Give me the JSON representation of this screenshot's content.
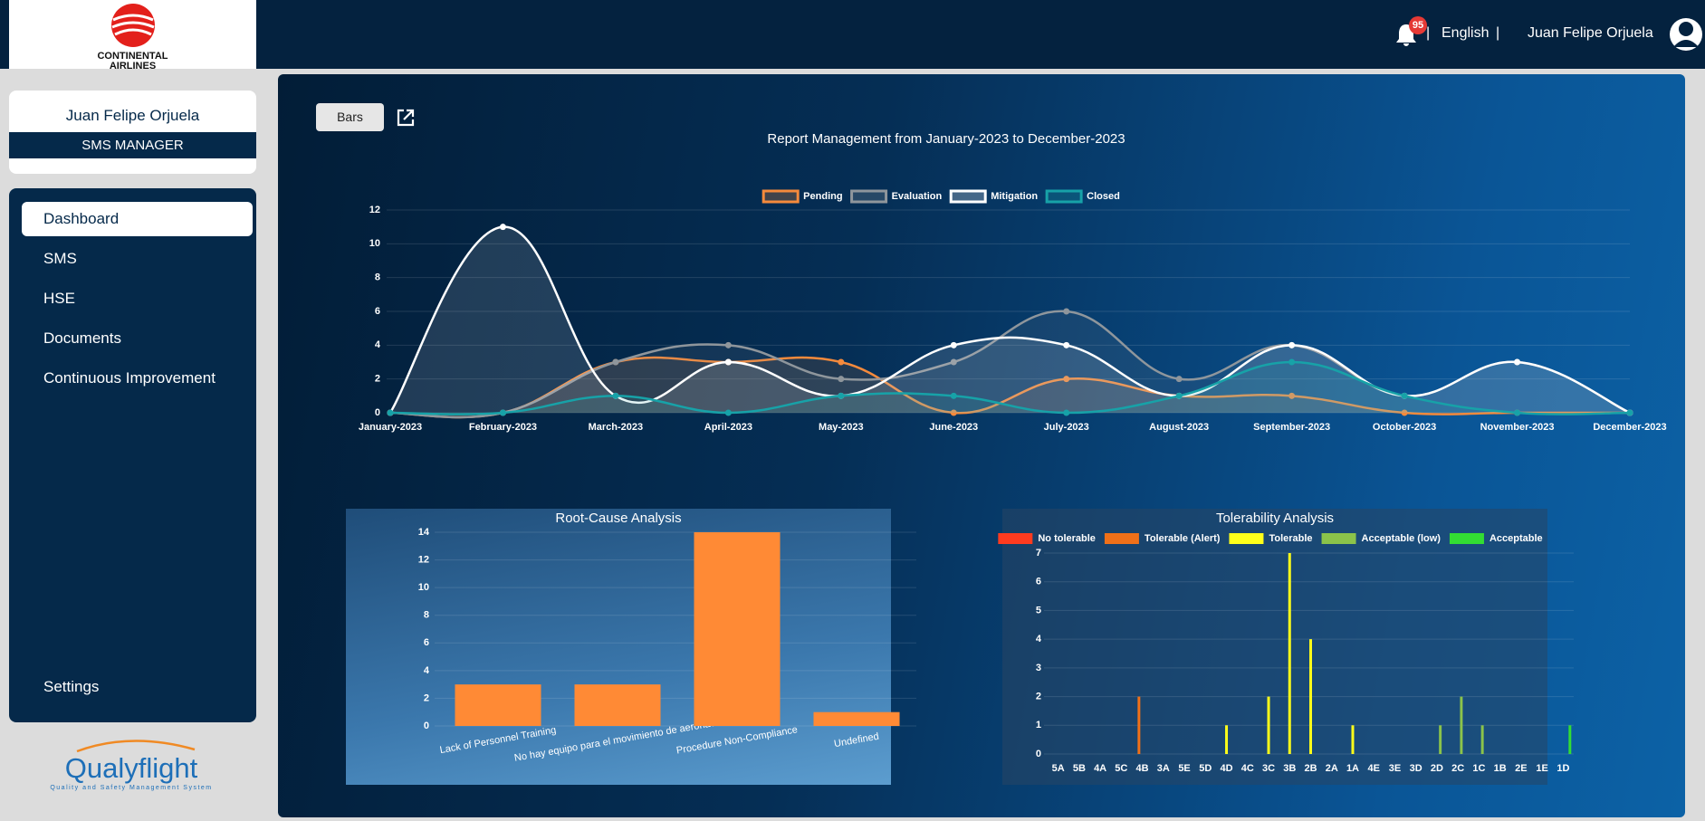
{
  "header": {
    "logo_lines": [
      "CONTINENTAL",
      "AIRLINES"
    ],
    "notifications": "95",
    "language": "English",
    "separator": "|",
    "user": "Juan Felipe Orjuela"
  },
  "sidebar": {
    "user_name": "Juan Felipe Orjuela",
    "role": "SMS MANAGER",
    "nav": [
      "Dashboard",
      "SMS",
      "HSE",
      "Documents",
      "Continuous Improvement"
    ],
    "settings": "Settings",
    "brand": "Qualyflight",
    "brand_tagline": "Quality and Safety Management System"
  },
  "toolbar": {
    "view_button": "Bars"
  },
  "chart_data": [
    {
      "type": "line",
      "title": "Report Management from January-2023 to December-2023",
      "categories": [
        "January-2023",
        "February-2023",
        "March-2023",
        "April-2023",
        "May-2023",
        "June-2023",
        "July-2023",
        "August-2023",
        "September-2023",
        "October-2023",
        "November-2023",
        "December-2023"
      ],
      "series": [
        {
          "name": "Pending",
          "color": "#f58a3c",
          "values": [
            0,
            0,
            3,
            3,
            3,
            0,
            2,
            1,
            1,
            0,
            0,
            0
          ]
        },
        {
          "name": "Evaluation",
          "color": "#8f969c",
          "values": [
            0,
            0,
            3,
            4,
            2,
            3,
            6,
            2,
            4,
            1,
            3,
            0
          ]
        },
        {
          "name": "Mitigation",
          "color": "#ffffff",
          "values": [
            0,
            11,
            1,
            3,
            1,
            4,
            4,
            1,
            4,
            1,
            3,
            0
          ]
        },
        {
          "name": "Closed",
          "color": "#17a2a8",
          "values": [
            0,
            0,
            1,
            0,
            1,
            1,
            0,
            1,
            3,
            1,
            0,
            0
          ]
        }
      ],
      "ylim": [
        0,
        12
      ],
      "yticks": [
        0,
        2,
        4,
        6,
        8,
        10,
        12
      ],
      "grid": true,
      "legend": "top"
    },
    {
      "type": "bar",
      "title": "Root-Cause Analysis",
      "categories": [
        "Lack of Personnel Training",
        "No hay equipo para el movimiento de aeronave",
        "Procedure Non-Compliance",
        "Undefined"
      ],
      "values": [
        3,
        3,
        14,
        1
      ],
      "color": "#ff8a35",
      "ylim": [
        0,
        14
      ],
      "yticks": [
        0,
        2,
        4,
        6,
        8,
        10,
        12,
        14
      ],
      "grid": true
    },
    {
      "type": "bar",
      "title": "Tolerability Analysis",
      "categories": [
        "5A",
        "5B",
        "4A",
        "5C",
        "4B",
        "3A",
        "5E",
        "5D",
        "4D",
        "4C",
        "3C",
        "3B",
        "2B",
        "2A",
        "1A",
        "4E",
        "3E",
        "3D",
        "2D",
        "2C",
        "1C",
        "1B",
        "2E",
        "1E",
        "1D"
      ],
      "series": [
        {
          "name": "No tolerable",
          "color": "#ff3b1f",
          "values": [
            0,
            0,
            0,
            0,
            0,
            0,
            0,
            0,
            0,
            0,
            0,
            0,
            0,
            0,
            0,
            0,
            0,
            0,
            0,
            0,
            0,
            0,
            0,
            0,
            0
          ]
        },
        {
          "name": "Tolerable (Alert)",
          "color": "#f07018",
          "values": [
            0,
            0,
            0,
            0,
            2,
            0,
            0,
            0,
            0,
            0,
            0,
            0,
            0,
            0,
            0,
            0,
            0,
            0,
            0,
            0,
            0,
            0,
            0,
            0,
            0
          ]
        },
        {
          "name": "Tolerable",
          "color": "#ffff1a",
          "values": [
            0,
            0,
            0,
            0,
            0,
            0,
            0,
            0,
            1,
            0,
            2,
            7,
            4,
            0,
            1,
            0,
            0,
            0,
            0,
            0,
            0,
            0,
            0,
            0,
            0
          ]
        },
        {
          "name": "Acceptable (low)",
          "color": "#8bc34a",
          "values": [
            0,
            0,
            0,
            0,
            0,
            0,
            0,
            0,
            0,
            0,
            0,
            0,
            0,
            0,
            0,
            0,
            0,
            0,
            1,
            2,
            1,
            0,
            0,
            0,
            0
          ]
        },
        {
          "name": "Acceptable",
          "color": "#33dd33",
          "values": [
            0,
            0,
            0,
            0,
            0,
            0,
            0,
            0,
            0,
            0,
            0,
            0,
            0,
            0,
            0,
            0,
            0,
            0,
            0,
            0,
            0,
            0,
            0,
            0,
            1
          ]
        }
      ],
      "ylim": [
        0,
        7
      ],
      "yticks": [
        0,
        1,
        2,
        3,
        4,
        5,
        6,
        7
      ],
      "grid": true,
      "legend": "top"
    }
  ]
}
